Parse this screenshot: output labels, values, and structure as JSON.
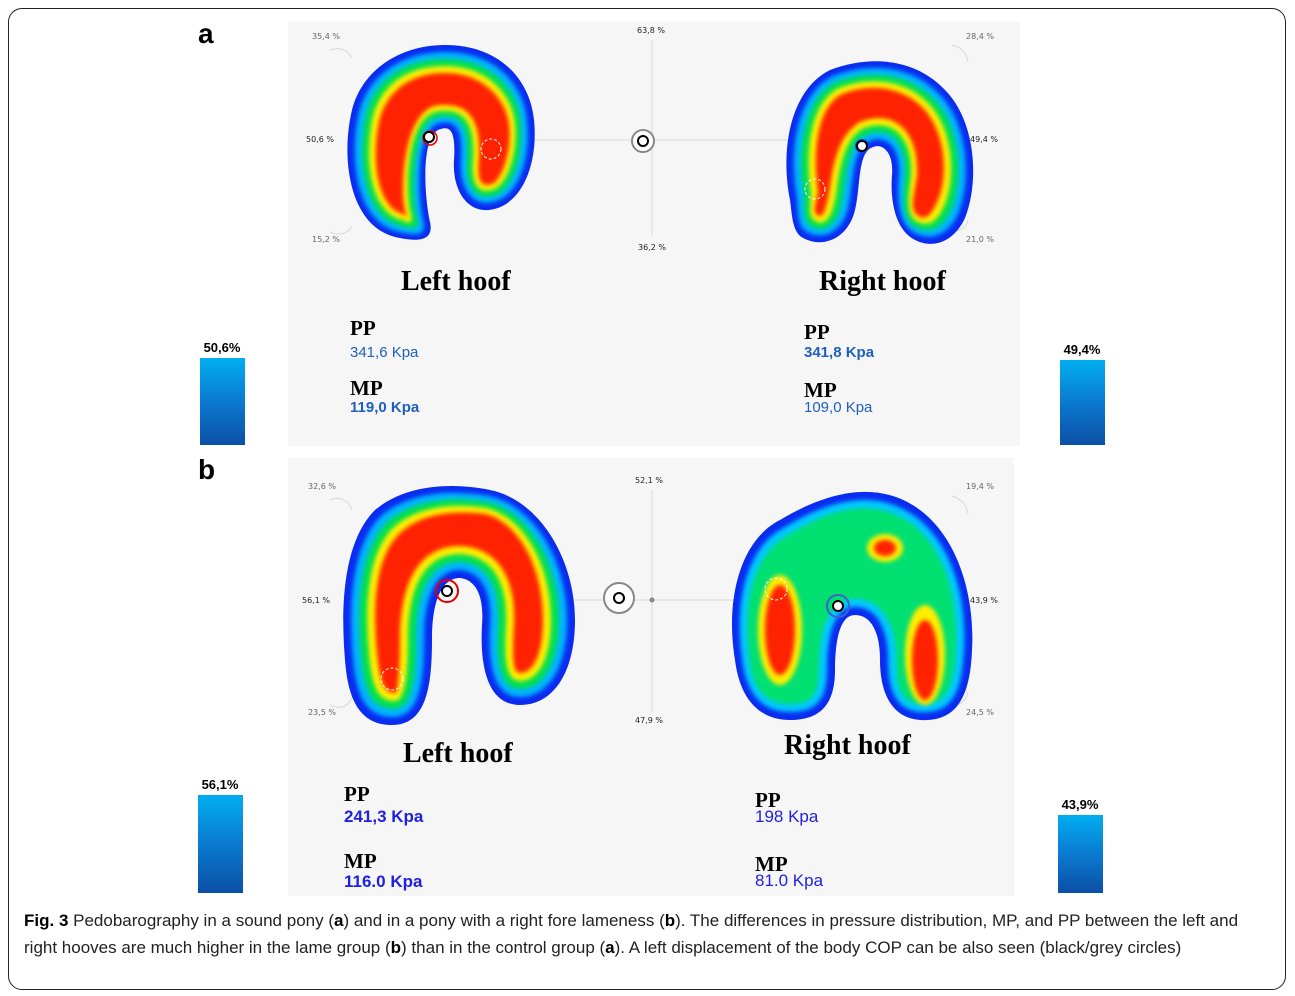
{
  "panels": [
    {
      "letter": "a",
      "left_hoof": {
        "title": "Left hoof",
        "pp_label": "PP",
        "pp_value": "341,6 Kpa",
        "mp_label": "MP",
        "mp_value": "119,0 Kpa"
      },
      "right_hoof": {
        "title": "Right hoof",
        "pp_label": "PP",
        "pp_value": "341,8 Kpa",
        "mp_label": "MP",
        "mp_value": "109,0 Kpa"
      },
      "left_bar": {
        "label": "50,6%",
        "value": 50.6
      },
      "right_bar": {
        "label": "49,4%",
        "value": 49.4
      },
      "percentages": {
        "top_left": "35,4 %",
        "mid_left": "50,6 %",
        "bottom_left": "15,2 %",
        "top_center": "63,8 %",
        "bottom_center": "36,2 %",
        "top_right": "28,4 %",
        "mid_right": "49,4 %",
        "bottom_right": "21,0 %"
      }
    },
    {
      "letter": "b",
      "left_hoof": {
        "title": "Left hoof",
        "pp_label": "PP",
        "pp_value": "241,3 Kpa",
        "mp_label": "MP",
        "mp_value": "116.0 Kpa"
      },
      "right_hoof": {
        "title": "Right hoof",
        "pp_label": "PP",
        "pp_value": "198 Kpa",
        "mp_label": "MP",
        "mp_value": "81.0 Kpa"
      },
      "left_bar": {
        "label": "56,1%",
        "value": 56.1
      },
      "right_bar": {
        "label": "43,9%",
        "value": 43.9
      },
      "percentages": {
        "top_left": "32,6 %",
        "mid_left": "56,1 %",
        "bottom_left": "23,5 %",
        "top_center": "52,1 %",
        "bottom_center": "47,9 %",
        "top_right": "19,4 %",
        "mid_right": "43,9 %",
        "bottom_right": "24,5 %"
      }
    }
  ],
  "caption": {
    "label": "Fig. 3",
    "t1": " Pedobarography in a sound pony (",
    "a1": "a",
    "t2": ") and in a pony with a right fore lameness (",
    "b1": "b",
    "t3": "). The differences in pressure distribution, MP, and PP between the left and right hooves are much higher in the lame group (",
    "b2": "b",
    "t4": ") than in the control group (",
    "a2": "a",
    "t5": "). A left displacement of the body COP can be also seen (black/grey circles)"
  },
  "colors": {
    "pressure_high": "#ff0000",
    "pressure_mid": "#ffff00",
    "pressure_low": "#00e000",
    "pressure_min": "#0000ff",
    "bar_top": "#00aef0",
    "bar_bottom": "#0c4fa6"
  }
}
